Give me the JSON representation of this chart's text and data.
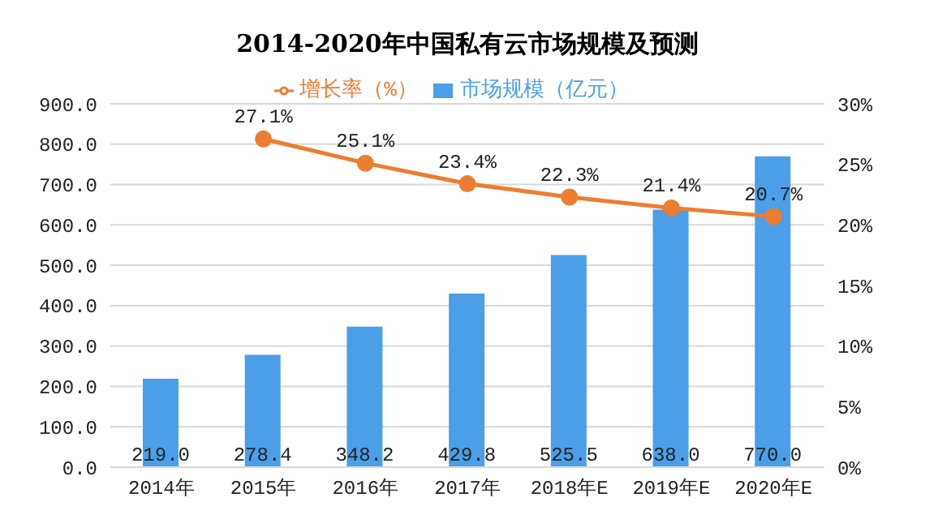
{
  "chart_data": {
    "type": "bar",
    "title": "2014-2020年中国私有云市场规模及预测",
    "categories": [
      "2014年",
      "2015年",
      "2016年",
      "2017年",
      "2018年E",
      "2019年E",
      "2020年E"
    ],
    "series": [
      {
        "name": "市场规模（亿元）",
        "color": "#4a9fe8",
        "values": [
          219.0,
          278.4,
          348.2,
          429.8,
          525.5,
          638.0,
          770.0
        ],
        "value_labels": [
          "219.0",
          "278.4",
          "348.2",
          "429.8",
          "525.5",
          "638.0",
          "770.0"
        ]
      },
      {
        "name": "增长率（%）",
        "type": "line",
        "axis": "y2",
        "color": "#ed7d31",
        "values": [
          null,
          27.1,
          25.1,
          23.4,
          22.3,
          21.4,
          20.7
        ],
        "value_labels": [
          null,
          "27.1%",
          "25.1%",
          "23.4%",
          "22.3%",
          "21.4%",
          "20.7%"
        ]
      }
    ],
    "ylim": [
      0,
      900
    ],
    "yticks": [
      {
        "value": 0,
        "label": "0.0"
      },
      {
        "value": 100,
        "label": "100.0"
      },
      {
        "value": 200,
        "label": "200.0"
      },
      {
        "value": 300,
        "label": "300.0"
      },
      {
        "value": 400,
        "label": "400.0"
      },
      {
        "value": 500,
        "label": "500.0"
      },
      {
        "value": 600,
        "label": "600.0"
      },
      {
        "value": 700,
        "label": "700.0"
      },
      {
        "value": 800,
        "label": "800.0"
      },
      {
        "value": 900,
        "label": "900.0"
      }
    ],
    "y2lim": [
      0,
      30
    ],
    "y2ticks": [
      {
        "value": 0,
        "label": "0%"
      },
      {
        "value": 5,
        "label": "5%"
      },
      {
        "value": 10,
        "label": "10%"
      },
      {
        "value": 15,
        "label": "15%"
      },
      {
        "value": 20,
        "label": "20%"
      },
      {
        "value": 25,
        "label": "25%"
      },
      {
        "value": 30,
        "label": "30%"
      }
    ],
    "grid": "y",
    "legend": "top",
    "marker": "circle"
  }
}
